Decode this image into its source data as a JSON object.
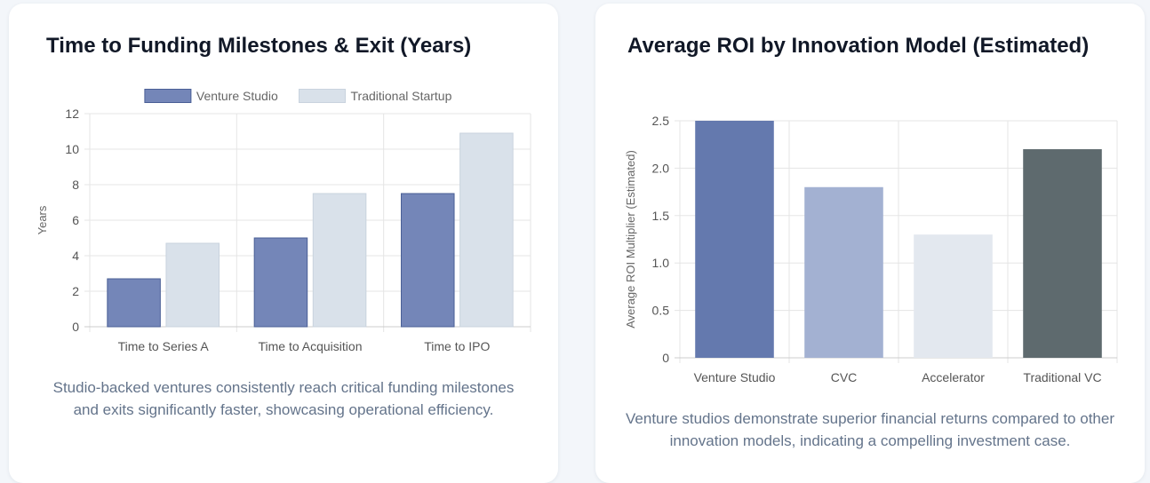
{
  "left_card": {
    "title": "Time to Funding Milestones & Exit (Years)",
    "caption": "Studio-backed ventures consistently reach critical funding milestones and exits significantly faster, showcasing operational efficiency."
  },
  "right_card": {
    "title": "Average ROI by Innovation Model (Estimated)",
    "caption": "Venture studios demonstrate superior financial returns compared to other innovation models, indicating a compelling investment case."
  },
  "chart_data": [
    {
      "type": "bar",
      "categories": [
        "Time to Series A",
        "Time to Acquisition",
        "Time to IPO"
      ],
      "series": [
        {
          "name": "Venture Studio",
          "values": [
            2.7,
            5.0,
            7.5
          ],
          "color": "#7486b8",
          "border": "#4a5f96"
        },
        {
          "name": "Traditional Startup",
          "values": [
            4.7,
            7.5,
            10.9
          ],
          "color": "#d9e1ea",
          "border": "#c9d3de"
        }
      ],
      "ylabel": "Years",
      "ylim": [
        0,
        12
      ],
      "yticks": [
        "0",
        "2",
        "4",
        "6",
        "8",
        "10",
        "12"
      ],
      "legend": "top",
      "grid": true
    },
    {
      "type": "bar",
      "categories": [
        "Venture Studio",
        "CVC",
        "Accelerator",
        "Traditional VC"
      ],
      "values": [
        2.5,
        1.8,
        1.3,
        2.2
      ],
      "colors": [
        "#6479ae",
        "#a3b1d2",
        "#e3e8ef",
        "#5e6a6e"
      ],
      "ylabel": "Average ROI Multiplier (Estimated)",
      "ylim": [
        0,
        2.5
      ],
      "yticks": [
        "0",
        "0.5",
        "1.0",
        "1.5",
        "2.0",
        "2.5"
      ],
      "grid": true
    }
  ]
}
